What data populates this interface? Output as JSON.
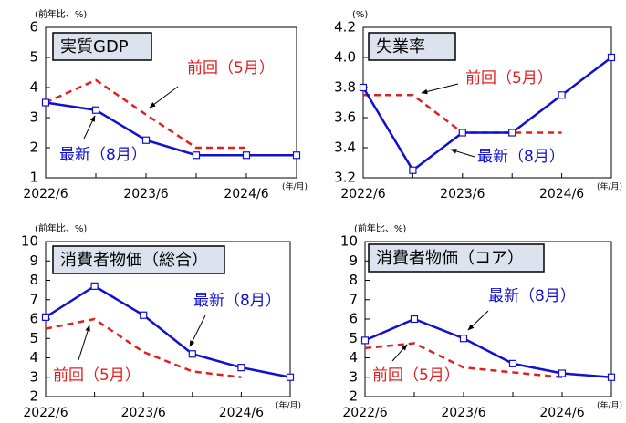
{
  "chart_data": [
    {
      "type": "line",
      "title": "実質GDP",
      "y_label": "(前年比、%)",
      "x_label": "(年/月)",
      "categories": [
        "2022/6",
        null,
        "2023/6",
        null,
        "2024/6",
        null
      ],
      "series": [
        {
          "name": "最新（8月）",
          "color": "#1010d0",
          "values": [
            3.5,
            3.25,
            2.25,
            1.75,
            1.75,
            1.75
          ]
        },
        {
          "name": "前回（5月）",
          "color": "#e02020",
          "values": [
            3.5,
            4.25,
            3.1,
            2.0,
            2.0,
            null
          ]
        }
      ],
      "ylim": [
        1,
        6
      ],
      "yticks": [
        1,
        2,
        3,
        4,
        5,
        6
      ]
    },
    {
      "type": "line",
      "title": "失業率",
      "y_label": "(%)",
      "x_label": "(年/月)",
      "categories": [
        "2022/6",
        null,
        "2023/6",
        null,
        "2024/6",
        null
      ],
      "series": [
        {
          "name": "最新（8月）",
          "color": "#1010d0",
          "values": [
            3.8,
            3.25,
            3.5,
            3.5,
            3.75,
            4.0
          ]
        },
        {
          "name": "前回（5月）",
          "color": "#e02020",
          "values": [
            3.75,
            3.75,
            3.5,
            3.5,
            3.5,
            null
          ]
        }
      ],
      "ylim": [
        3.2,
        4.2
      ],
      "yticks": [
        3.2,
        3.4,
        3.6,
        3.8,
        {
          "value": 4,
          "label": "4.0"
        },
        4.2
      ]
    },
    {
      "type": "line",
      "title": "消費者物価（総合）",
      "y_label": "(前年比、%)",
      "x_label": "(年/月)",
      "categories": [
        "2022/6",
        null,
        "2023/6",
        null,
        "2024/6",
        null
      ],
      "series": [
        {
          "name": "最新（8月）",
          "color": "#1010d0",
          "values": [
            6.1,
            7.7,
            6.2,
            4.2,
            3.5,
            3.0
          ]
        },
        {
          "name": "前回（5月）",
          "color": "#e02020",
          "values": [
            5.5,
            6.0,
            4.3,
            3.3,
            3.0,
            null
          ]
        }
      ],
      "ylim": [
        2,
        10
      ],
      "yticks": [
        2,
        3,
        4,
        5,
        6,
        7,
        8,
        9,
        10
      ]
    },
    {
      "type": "line",
      "title": "消費者物価（コア）",
      "y_label": "(前年比、%)",
      "x_label": "(年/月)",
      "categories": [
        "2022/6",
        null,
        "2023/6",
        null,
        "2024/6",
        null
      ],
      "series": [
        {
          "name": "最新（8月）",
          "color": "#1010d0",
          "values": [
            4.9,
            6.0,
            5.0,
            3.7,
            3.2,
            3.0
          ]
        },
        {
          "name": "前回（5月）",
          "color": "#e02020",
          "values": [
            4.5,
            4.75,
            3.5,
            3.25,
            3.0,
            null
          ]
        }
      ],
      "ylim": [
        2,
        10
      ],
      "yticks": [
        2,
        3,
        4,
        5,
        6,
        7,
        8,
        9,
        10
      ]
    }
  ]
}
